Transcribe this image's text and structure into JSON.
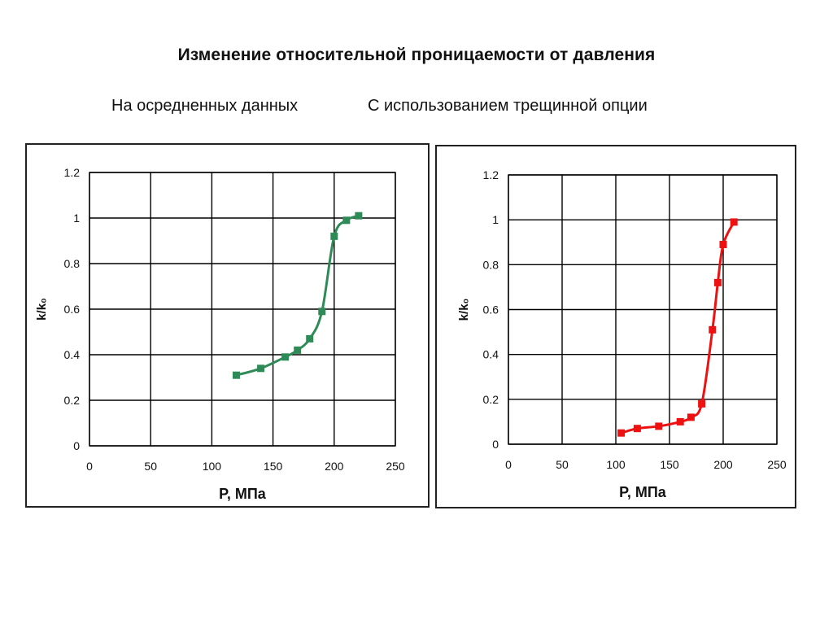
{
  "title": "Изменение относительной проницаемости от давления",
  "subtitles": {
    "left": "На осредненных данных",
    "right": "С использованием трещинной опции"
  },
  "chart_data": [
    {
      "type": "line",
      "xlabel": "P, МПа",
      "ylabel": "k/k₀",
      "xlim": [
        0,
        250
      ],
      "ylim": [
        0,
        1.2
      ],
      "x_ticks": [
        0,
        50,
        100,
        150,
        200,
        250
      ],
      "y_ticks": [
        0,
        0.2,
        0.4,
        0.6,
        0.8,
        1,
        1.2
      ],
      "x_tick_labels": [
        "0",
        "50",
        "100",
        "150",
        "200",
        "250"
      ],
      "y_tick_labels": [
        "0",
        "0.2",
        "0.4",
        "0.6",
        "0.8",
        "1",
        "1.2"
      ],
      "grid": true,
      "legend": "none",
      "color": "#2e8b57",
      "marker": "square",
      "series": [
        {
          "x": [
            120,
            140,
            160,
            170,
            180,
            190,
            200,
            210,
            220
          ],
          "y": [
            0.31,
            0.34,
            0.39,
            0.42,
            0.47,
            0.59,
            0.92,
            0.99,
            1.01
          ]
        }
      ]
    },
    {
      "type": "line",
      "xlabel": "P, МПа",
      "ylabel": "k/k₀",
      "xlim": [
        0,
        250
      ],
      "ylim": [
        0,
        1.2
      ],
      "x_ticks": [
        0,
        50,
        100,
        150,
        200,
        250
      ],
      "y_ticks": [
        0,
        0.2,
        0.4,
        0.6,
        0.8,
        1,
        1.2
      ],
      "x_tick_labels": [
        "0",
        "50",
        "100",
        "150",
        "200",
        "250"
      ],
      "y_tick_labels": [
        "0",
        "0.2",
        "0.4",
        "0.6",
        "0.8",
        "1",
        "1.2"
      ],
      "grid": true,
      "legend": "none",
      "color": "#ee1111",
      "marker": "square",
      "series": [
        {
          "x": [
            105,
            120,
            140,
            160,
            170,
            180,
            190,
            195,
            200,
            210
          ],
          "y": [
            0.05,
            0.07,
            0.08,
            0.1,
            0.12,
            0.18,
            0.51,
            0.72,
            0.89,
            0.99
          ]
        }
      ]
    }
  ]
}
